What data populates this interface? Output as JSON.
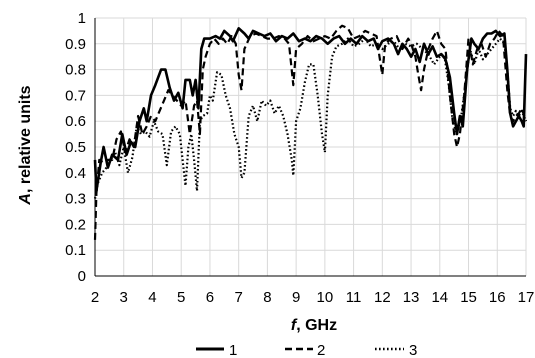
{
  "chart_data": {
    "type": "line",
    "title": "",
    "xlabel": {
      "symbol": "f",
      "unit": ", GHz"
    },
    "ylabel": {
      "symbol": "A",
      "unit": ", relative units"
    },
    "xlim": [
      2,
      17
    ],
    "ylim": [
      0,
      1
    ],
    "x_ticks": [
      "2",
      "3",
      "4",
      "5",
      "6",
      "7",
      "8",
      "9",
      "10",
      "11",
      "12",
      "13",
      "14",
      "15",
      "16",
      "17"
    ],
    "y_ticks": [
      "0",
      "0.1",
      "0.2",
      "0.3",
      "0.4",
      "0.5",
      "0.6",
      "0.7",
      "0.8",
      "0.9",
      "1"
    ],
    "grid": true,
    "legend_position": "bottom",
    "colors": {
      "line": "#000000",
      "grid": "#d9d9d9",
      "axis": "#000000"
    },
    "series": [
      {
        "name": "1",
        "style": "solid",
        "points": [
          [
            2.0,
            0.45
          ],
          [
            2.05,
            0.33
          ],
          [
            2.2,
            0.44
          ],
          [
            2.3,
            0.5
          ],
          [
            2.45,
            0.42
          ],
          [
            2.6,
            0.47
          ],
          [
            2.8,
            0.45
          ],
          [
            2.95,
            0.55
          ],
          [
            3.1,
            0.47
          ],
          [
            3.25,
            0.52
          ],
          [
            3.4,
            0.5
          ],
          [
            3.55,
            0.6
          ],
          [
            3.7,
            0.65
          ],
          [
            3.8,
            0.6
          ],
          [
            3.95,
            0.7
          ],
          [
            4.1,
            0.74
          ],
          [
            4.3,
            0.8
          ],
          [
            4.45,
            0.8
          ],
          [
            4.6,
            0.73
          ],
          [
            4.75,
            0.68
          ],
          [
            4.9,
            0.71
          ],
          [
            5.05,
            0.65
          ],
          [
            5.15,
            0.76
          ],
          [
            5.3,
            0.76
          ],
          [
            5.4,
            0.7
          ],
          [
            5.5,
            0.76
          ],
          [
            5.6,
            0.65
          ],
          [
            5.7,
            0.88
          ],
          [
            5.8,
            0.92
          ],
          [
            6.0,
            0.92
          ],
          [
            6.2,
            0.93
          ],
          [
            6.35,
            0.92
          ],
          [
            6.5,
            0.95
          ],
          [
            6.7,
            0.93
          ],
          [
            6.8,
            0.91
          ],
          [
            7.0,
            0.96
          ],
          [
            7.2,
            0.94
          ],
          [
            7.35,
            0.92
          ],
          [
            7.5,
            0.95
          ],
          [
            7.7,
            0.94
          ],
          [
            7.9,
            0.93
          ],
          [
            8.1,
            0.94
          ],
          [
            8.3,
            0.91
          ],
          [
            8.5,
            0.93
          ],
          [
            8.7,
            0.92
          ],
          [
            8.9,
            0.94
          ],
          [
            9.1,
            0.91
          ],
          [
            9.3,
            0.92
          ],
          [
            9.5,
            0.91
          ],
          [
            9.7,
            0.93
          ],
          [
            9.9,
            0.92
          ],
          [
            10.1,
            0.9
          ],
          [
            10.3,
            0.92
          ],
          [
            10.5,
            0.93
          ],
          [
            10.7,
            0.9
          ],
          [
            10.9,
            0.92
          ],
          [
            11.1,
            0.9
          ],
          [
            11.3,
            0.93
          ],
          [
            11.5,
            0.91
          ],
          [
            11.7,
            0.92
          ],
          [
            11.85,
            0.88
          ],
          [
            12.0,
            0.91
          ],
          [
            12.2,
            0.92
          ],
          [
            12.4,
            0.9
          ],
          [
            12.55,
            0.86
          ],
          [
            12.7,
            0.9
          ],
          [
            12.85,
            0.88
          ],
          [
            13.0,
            0.85
          ],
          [
            13.15,
            0.88
          ],
          [
            13.3,
            0.83
          ],
          [
            13.45,
            0.9
          ],
          [
            13.6,
            0.86
          ],
          [
            13.75,
            0.89
          ],
          [
            13.9,
            0.85
          ],
          [
            14.05,
            0.86
          ],
          [
            14.2,
            0.84
          ],
          [
            14.35,
            0.77
          ],
          [
            14.5,
            0.63
          ],
          [
            14.6,
            0.55
          ],
          [
            14.7,
            0.62
          ],
          [
            14.8,
            0.58
          ],
          [
            14.95,
            0.8
          ],
          [
            15.1,
            0.92
          ],
          [
            15.2,
            0.9
          ],
          [
            15.35,
            0.88
          ],
          [
            15.5,
            0.92
          ],
          [
            15.65,
            0.94
          ],
          [
            15.8,
            0.94
          ],
          [
            15.95,
            0.95
          ],
          [
            16.1,
            0.93
          ],
          [
            16.25,
            0.94
          ],
          [
            16.35,
            0.8
          ],
          [
            16.45,
            0.63
          ],
          [
            16.55,
            0.58
          ],
          [
            16.65,
            0.6
          ],
          [
            16.75,
            0.62
          ],
          [
            16.85,
            0.6
          ],
          [
            16.92,
            0.58
          ],
          [
            17.0,
            0.86
          ]
        ]
      },
      {
        "name": "2",
        "style": "dashed",
        "points": [
          [
            2.0,
            0.14
          ],
          [
            2.05,
            0.32
          ],
          [
            2.15,
            0.45
          ],
          [
            2.3,
            0.44
          ],
          [
            2.45,
            0.45
          ],
          [
            2.6,
            0.45
          ],
          [
            2.75,
            0.53
          ],
          [
            2.9,
            0.56
          ],
          [
            3.05,
            0.48
          ],
          [
            3.2,
            0.53
          ],
          [
            3.35,
            0.5
          ],
          [
            3.5,
            0.62
          ],
          [
            3.65,
            0.55
          ],
          [
            3.8,
            0.58
          ],
          [
            3.95,
            0.62
          ],
          [
            4.1,
            0.6
          ],
          [
            4.25,
            0.64
          ],
          [
            4.4,
            0.68
          ],
          [
            4.55,
            0.72
          ],
          [
            4.7,
            0.7
          ],
          [
            4.85,
            0.68
          ],
          [
            5.0,
            0.66
          ],
          [
            5.15,
            0.68
          ],
          [
            5.3,
            0.55
          ],
          [
            5.45,
            0.66
          ],
          [
            5.55,
            0.68
          ],
          [
            5.65,
            0.55
          ],
          [
            5.75,
            0.8
          ],
          [
            5.85,
            0.85
          ],
          [
            6.0,
            0.9
          ],
          [
            6.15,
            0.92
          ],
          [
            6.3,
            0.9
          ],
          [
            6.45,
            0.92
          ],
          [
            6.6,
            0.9
          ],
          [
            6.75,
            0.93
          ],
          [
            6.9,
            0.9
          ],
          [
            7.0,
            0.78
          ],
          [
            7.1,
            0.72
          ],
          [
            7.2,
            0.88
          ],
          [
            7.4,
            0.93
          ],
          [
            7.6,
            0.94
          ],
          [
            7.8,
            0.93
          ],
          [
            8.0,
            0.92
          ],
          [
            8.2,
            0.92
          ],
          [
            8.4,
            0.93
          ],
          [
            8.6,
            0.92
          ],
          [
            8.75,
            0.9
          ],
          [
            8.9,
            0.74
          ],
          [
            9.0,
            0.88
          ],
          [
            9.2,
            0.9
          ],
          [
            9.4,
            0.93
          ],
          [
            9.6,
            0.91
          ],
          [
            9.8,
            0.92
          ],
          [
            10.0,
            0.93
          ],
          [
            10.2,
            0.92
          ],
          [
            10.4,
            0.95
          ],
          [
            10.6,
            0.97
          ],
          [
            10.8,
            0.96
          ],
          [
            11.0,
            0.92
          ],
          [
            11.2,
            0.93
          ],
          [
            11.4,
            0.95
          ],
          [
            11.6,
            0.94
          ],
          [
            11.8,
            0.93
          ],
          [
            11.9,
            0.85
          ],
          [
            12.0,
            0.78
          ],
          [
            12.1,
            0.9
          ],
          [
            12.3,
            0.92
          ],
          [
            12.5,
            0.93
          ],
          [
            12.7,
            0.88
          ],
          [
            12.9,
            0.92
          ],
          [
            13.0,
            0.9
          ],
          [
            13.15,
            0.85
          ],
          [
            13.25,
            0.78
          ],
          [
            13.35,
            0.72
          ],
          [
            13.45,
            0.8
          ],
          [
            13.6,
            0.88
          ],
          [
            13.75,
            0.92
          ],
          [
            13.9,
            0.95
          ],
          [
            14.05,
            0.9
          ],
          [
            14.2,
            0.88
          ],
          [
            14.35,
            0.7
          ],
          [
            14.5,
            0.55
          ],
          [
            14.6,
            0.5
          ],
          [
            14.7,
            0.55
          ],
          [
            14.85,
            0.7
          ],
          [
            15.0,
            0.92
          ],
          [
            15.15,
            0.82
          ],
          [
            15.3,
            0.88
          ],
          [
            15.45,
            0.9
          ],
          [
            15.6,
            0.85
          ],
          [
            15.75,
            0.9
          ],
          [
            15.9,
            0.92
          ],
          [
            16.05,
            0.95
          ],
          [
            16.2,
            0.93
          ],
          [
            16.35,
            0.72
          ],
          [
            16.45,
            0.62
          ],
          [
            16.55,
            0.6
          ],
          [
            16.65,
            0.62
          ],
          [
            16.75,
            0.63
          ],
          [
            16.85,
            0.65
          ],
          [
            17.0,
            0.6
          ]
        ]
      },
      {
        "name": "3",
        "style": "dotted",
        "points": [
          [
            2.0,
            0.3
          ],
          [
            2.1,
            0.36
          ],
          [
            2.25,
            0.4
          ],
          [
            2.4,
            0.42
          ],
          [
            2.55,
            0.45
          ],
          [
            2.7,
            0.48
          ],
          [
            2.85,
            0.43
          ],
          [
            3.0,
            0.5
          ],
          [
            3.15,
            0.4
          ],
          [
            3.3,
            0.46
          ],
          [
            3.45,
            0.58
          ],
          [
            3.6,
            0.55
          ],
          [
            3.75,
            0.56
          ],
          [
            3.9,
            0.54
          ],
          [
            4.05,
            0.6
          ],
          [
            4.2,
            0.56
          ],
          [
            4.35,
            0.55
          ],
          [
            4.5,
            0.43
          ],
          [
            4.65,
            0.56
          ],
          [
            4.8,
            0.58
          ],
          [
            4.95,
            0.55
          ],
          [
            5.05,
            0.45
          ],
          [
            5.15,
            0.35
          ],
          [
            5.25,
            0.5
          ],
          [
            5.35,
            0.55
          ],
          [
            5.45,
            0.45
          ],
          [
            5.55,
            0.33
          ],
          [
            5.65,
            0.6
          ],
          [
            5.75,
            0.62
          ],
          [
            5.9,
            0.63
          ],
          [
            6.0,
            0.7
          ],
          [
            6.1,
            0.68
          ],
          [
            6.25,
            0.79
          ],
          [
            6.4,
            0.78
          ],
          [
            6.55,
            0.7
          ],
          [
            6.7,
            0.65
          ],
          [
            6.85,
            0.55
          ],
          [
            7.0,
            0.5
          ],
          [
            7.1,
            0.38
          ],
          [
            7.2,
            0.4
          ],
          [
            7.35,
            0.62
          ],
          [
            7.5,
            0.66
          ],
          [
            7.65,
            0.6
          ],
          [
            7.8,
            0.68
          ],
          [
            7.95,
            0.66
          ],
          [
            8.1,
            0.68
          ],
          [
            8.25,
            0.63
          ],
          [
            8.4,
            0.66
          ],
          [
            8.55,
            0.62
          ],
          [
            8.7,
            0.55
          ],
          [
            8.85,
            0.45
          ],
          [
            8.9,
            0.39
          ],
          [
            9.0,
            0.6
          ],
          [
            9.15,
            0.65
          ],
          [
            9.3,
            0.75
          ],
          [
            9.45,
            0.82
          ],
          [
            9.6,
            0.82
          ],
          [
            9.75,
            0.7
          ],
          [
            9.9,
            0.55
          ],
          [
            10.0,
            0.48
          ],
          [
            10.1,
            0.7
          ],
          [
            10.25,
            0.85
          ],
          [
            10.4,
            0.89
          ],
          [
            10.6,
            0.9
          ],
          [
            10.8,
            0.92
          ],
          [
            11.0,
            0.89
          ],
          [
            11.2,
            0.9
          ],
          [
            11.4,
            0.92
          ],
          [
            11.6,
            0.89
          ],
          [
            11.8,
            0.9
          ],
          [
            12.0,
            0.88
          ],
          [
            12.2,
            0.9
          ],
          [
            12.4,
            0.91
          ],
          [
            12.6,
            0.88
          ],
          [
            12.8,
            0.9
          ],
          [
            13.0,
            0.89
          ],
          [
            13.2,
            0.9
          ],
          [
            13.4,
            0.88
          ],
          [
            13.6,
            0.86
          ],
          [
            13.8,
            0.82
          ],
          [
            14.0,
            0.85
          ],
          [
            14.15,
            0.86
          ],
          [
            14.3,
            0.75
          ],
          [
            14.45,
            0.6
          ],
          [
            14.6,
            0.55
          ],
          [
            14.75,
            0.62
          ],
          [
            14.9,
            0.75
          ],
          [
            15.05,
            0.88
          ],
          [
            15.2,
            0.82
          ],
          [
            15.35,
            0.88
          ],
          [
            15.5,
            0.84
          ],
          [
            15.65,
            0.86
          ],
          [
            15.8,
            0.88
          ],
          [
            15.95,
            0.9
          ],
          [
            16.1,
            0.92
          ],
          [
            16.25,
            0.9
          ],
          [
            16.35,
            0.8
          ],
          [
            16.45,
            0.65
          ],
          [
            16.55,
            0.62
          ],
          [
            16.65,
            0.64
          ],
          [
            16.75,
            0.62
          ],
          [
            16.85,
            0.64
          ],
          [
            17.0,
            0.6
          ]
        ]
      }
    ]
  }
}
